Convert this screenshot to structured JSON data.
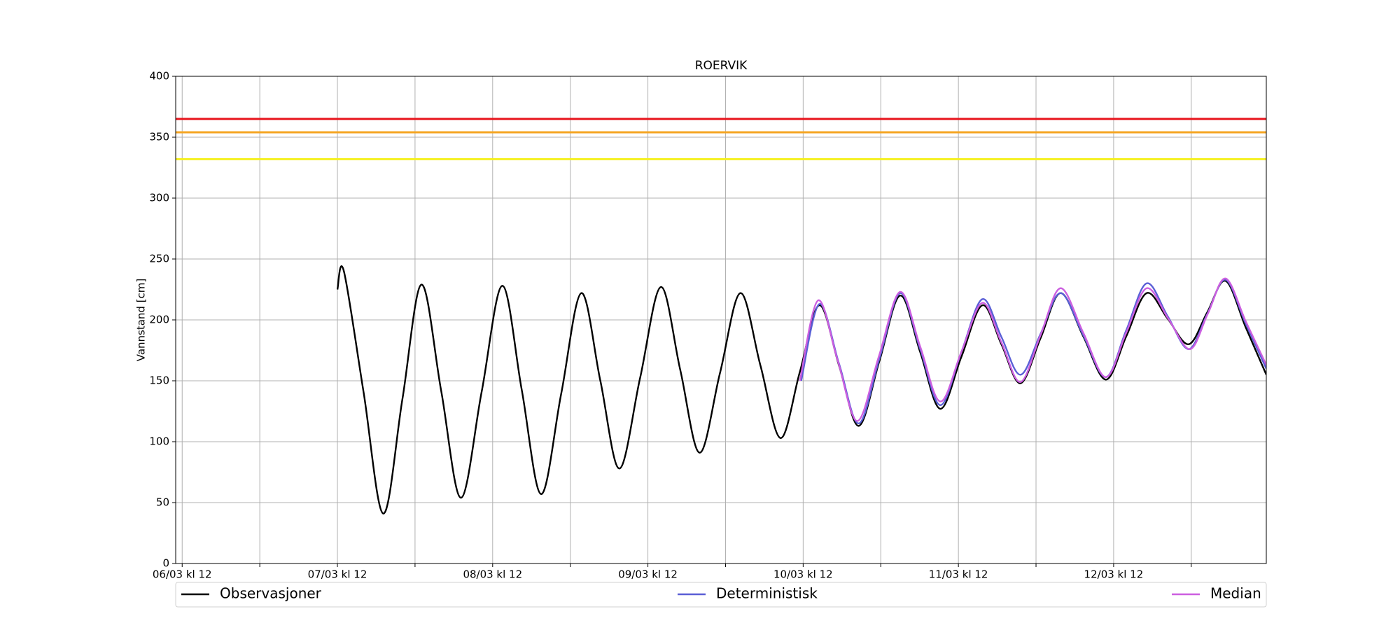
{
  "chart_data": {
    "type": "line",
    "title": "ROERVIK",
    "y_label": "Vannstand [cm]",
    "xlim": [
      -1,
      167.6
    ],
    "ylim": [
      0,
      400
    ],
    "yticks": [
      0,
      50,
      100,
      150,
      200,
      250,
      300,
      350,
      400
    ],
    "xticks": [
      {
        "value": 0,
        "label": "06/03 kl 12"
      },
      {
        "value": 24,
        "label": "07/03 kl 12"
      },
      {
        "value": 48,
        "label": "08/03 kl 12"
      },
      {
        "value": 72,
        "label": "09/03 kl 12"
      },
      {
        "value": 96,
        "label": "10/03 kl 12"
      },
      {
        "value": 120,
        "label": "11/03 kl 12"
      },
      {
        "value": 144,
        "label": "12/03 kl 12"
      }
    ],
    "xminorticks": [
      12,
      36,
      60,
      84,
      108,
      132,
      156
    ],
    "grid": true,
    "legend": "below",
    "hlines": [
      {
        "value": 365,
        "color": "#e8141c"
      },
      {
        "value": 354,
        "color": "#f5a623"
      },
      {
        "value": 332,
        "color": "#f5f01e"
      }
    ],
    "series": [
      {
        "name": "Observasjoner",
        "color": "#000000",
        "x": [
          24,
          25,
          28.05,
          31.1,
          34.05,
          37,
          40.05,
          43.1,
          46.3,
          49.5,
          52.5,
          55.5,
          58.6,
          61.7,
          64.65,
          67.6,
          70.8,
          74,
          77,
          80,
          83.15,
          86.3,
          89.4,
          92.5,
          95.5,
          98.5,
          101.55,
          104.6,
          107.8,
          111,
          114.1,
          117.2,
          120.45,
          123.7,
          126.65,
          129.6,
          132.7,
          135.8,
          139.3,
          142.8,
          145.95,
          149.1,
          152.35,
          155.6,
          158.45,
          161.3,
          164.45,
          167.6
        ],
        "values": [
          225,
          240,
          140.5,
          41,
          135,
          229,
          141.5,
          54,
          141,
          228,
          142.5,
          57,
          139.5,
          222,
          150,
          78,
          152.5,
          227,
          159,
          91,
          156.5,
          222,
          162.5,
          103,
          157.5,
          212,
          162.5,
          113,
          166.5,
          220,
          173.5,
          127,
          169.5,
          212,
          180,
          148,
          185,
          222,
          186.5,
          151,
          186.5,
          222,
          201,
          180,
          206,
          232,
          193.5,
          155
        ]
      },
      {
        "name": "Deterministisk",
        "color": "#5a5fd6",
        "x": [
          95.7,
          98.5,
          101.55,
          104.6,
          107.8,
          111,
          114.1,
          117.2,
          120.45,
          123.7,
          126.65,
          129.6,
          132.7,
          135.8,
          139.3,
          142.8,
          145.95,
          149.1,
          152.35,
          155.6,
          158.45,
          161.3,
          164.45,
          167.6
        ],
        "values": [
          150,
          213,
          164,
          115,
          168.5,
          222,
          176,
          130,
          173.5,
          217,
          186,
          155,
          188.5,
          222,
          187.5,
          153,
          191.5,
          230,
          203,
          176,
          204.5,
          233,
          196.5,
          160
        ]
      },
      {
        "name": "Median",
        "color": "#cc5fe0",
        "x": [
          95.5,
          98.3,
          101.35,
          104.4,
          107.7,
          111,
          114.1,
          117.2,
          120.45,
          123.7,
          126.65,
          129.6,
          132.7,
          135.8,
          139.3,
          142.8,
          145.95,
          149.1,
          152.45,
          155.8,
          158.55,
          161.3,
          164.45,
          167.6
        ],
        "values": [
          150,
          216,
          166.5,
          117,
          170,
          223,
          178,
          133,
          173.5,
          214,
          181.5,
          149,
          187.5,
          226,
          189.5,
          153,
          189.5,
          226,
          201,
          176,
          205,
          234,
          198.5,
          163
        ]
      }
    ]
  }
}
